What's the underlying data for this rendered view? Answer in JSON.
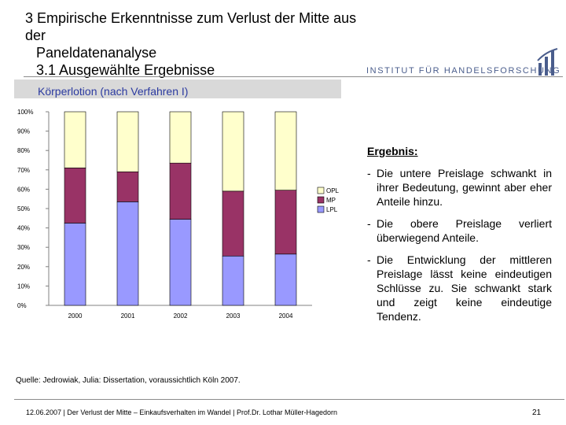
{
  "header": {
    "title_line1": "3 Empirische Erkenntnisse zum Verlust der Mitte aus der",
    "title_line2": "Paneldatenanalyse",
    "subtitle": "3.1 Ausgewählte Ergebnisse"
  },
  "logo": {
    "text": "INSTITUT FÜR HANDELSFORSCHUNG",
    "accent_color": "#4a5d8c"
  },
  "panel": {
    "title": "Körperlotion (nach Verfahren I)"
  },
  "chart_data": {
    "type": "bar",
    "stacked": true,
    "percent": true,
    "categories": [
      "2000",
      "2001",
      "2002",
      "2003",
      "2004"
    ],
    "series": [
      {
        "name": "LPL",
        "color": "#9999ff",
        "values": [
          42.5,
          53.5,
          44.5,
          25.5,
          26.5
        ]
      },
      {
        "name": "MP",
        "color": "#993366",
        "values": [
          28.5,
          15.5,
          29.0,
          33.5,
          33.0
        ]
      },
      {
        "name": "OPL",
        "color": "#ffffcc",
        "values": [
          29.0,
          31.0,
          26.5,
          41.0,
          40.5
        ]
      }
    ],
    "yticks": [
      "0%",
      "10%",
      "20%",
      "30%",
      "40%",
      "50%",
      "60%",
      "70%",
      "80%",
      "90%",
      "100%"
    ],
    "ylim": [
      0,
      100
    ],
    "legend": [
      "OPL",
      "MP",
      "LPL"
    ],
    "legend_position": "right",
    "grid": false
  },
  "result": {
    "heading": "Ergebnis:",
    "bullets": [
      "Die untere Preislage schwankt in ihrer Bedeutung, gewinnt aber eher Anteile hinzu.",
      "Die obere Preislage verliert überwiegend Anteile.",
      "Die Entwicklung der mittleren Preislage lässt keine eindeutigen Schlüsse zu. Sie schwankt stark und zeigt keine eindeutige Tendenz."
    ]
  },
  "source": "Quelle: Jedrowiak, Julia: Dissertation, voraussichtlich Köln 2007.",
  "footer": {
    "text": "12.06.2007 | Der Verlust der Mitte – Einkaufsverhalten im Wandel | Prof.Dr. Lothar Müller-Hagedorn",
    "page": "21"
  }
}
